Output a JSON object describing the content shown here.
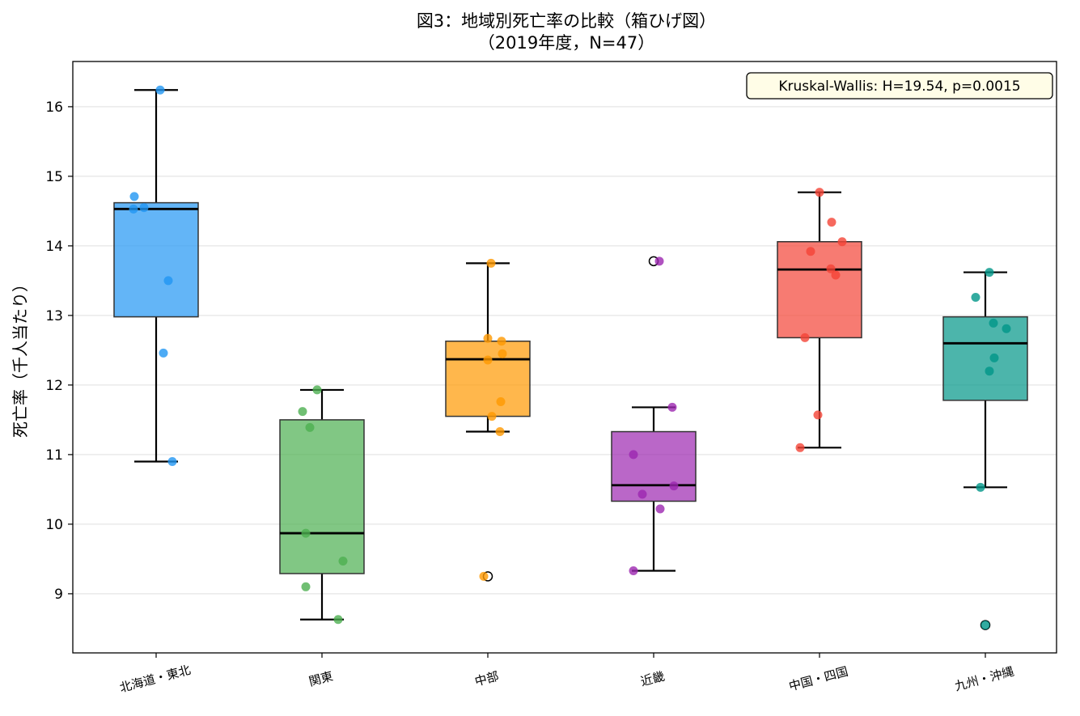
{
  "chart_data": {
    "type": "boxplot",
    "title": "図3：地域別死亡率の比較（箱ひげ図）",
    "subtitle": "（2019年度，N=47）",
    "ylabel": "死亡率（千人当たり）",
    "xlabel": "",
    "ylim": [
      8.15,
      16.65
    ],
    "yticks": [
      9,
      10,
      11,
      12,
      13,
      14,
      15,
      16
    ],
    "grid": "horizontal",
    "annotation": "Kruskal-Wallis: H=19.54, p=0.0015",
    "annotation_position": "top-right",
    "categories": [
      "北海道・東北",
      "関東",
      "中部",
      "近畿",
      "中国・四国",
      "九州・沖縄"
    ],
    "boxes": [
      {
        "category": "北海道・東北",
        "color": "#2196F3",
        "whisker_low": 10.9,
        "q1": 12.98,
        "median": 14.53,
        "q3": 14.62,
        "whisker_high": 16.24,
        "outliers": [],
        "points": [
          {
            "x": 0.2,
            "y": 10.9
          },
          {
            "x": 0.09,
            "y": 12.46
          },
          {
            "x": 0.15,
            "y": 13.5
          },
          {
            "x": -0.28,
            "y": 14.53
          },
          {
            "x": -0.15,
            "y": 14.55
          },
          {
            "x": -0.27,
            "y": 14.71
          },
          {
            "x": 0.05,
            "y": 16.24
          }
        ]
      },
      {
        "category": "関東",
        "color": "#4CAF50",
        "whisker_low": 8.63,
        "q1": 9.29,
        "median": 9.87,
        "q3": 11.5,
        "whisker_high": 11.93,
        "outliers": [],
        "points": [
          {
            "x": 0.2,
            "y": 8.63
          },
          {
            "x": -0.2,
            "y": 9.1
          },
          {
            "x": 0.26,
            "y": 9.47
          },
          {
            "x": -0.2,
            "y": 9.87
          },
          {
            "x": -0.15,
            "y": 11.39
          },
          {
            "x": -0.24,
            "y": 11.62
          },
          {
            "x": -0.06,
            "y": 11.93
          }
        ]
      },
      {
        "category": "中部",
        "color": "#FF9800",
        "whisker_low": 11.33,
        "q1": 11.55,
        "median": 12.37,
        "q3": 12.63,
        "whisker_high": 13.75,
        "outliers": [
          9.25
        ],
        "points": [
          {
            "x": -0.05,
            "y": 9.25
          },
          {
            "x": 0.15,
            "y": 11.33
          },
          {
            "x": 0.05,
            "y": 11.55
          },
          {
            "x": 0.16,
            "y": 11.76
          },
          {
            "x": 0.0,
            "y": 12.36
          },
          {
            "x": 0.18,
            "y": 12.45
          },
          {
            "x": 0.0,
            "y": 12.67
          },
          {
            "x": 0.17,
            "y": 12.63
          },
          {
            "x": 0.04,
            "y": 13.75
          }
        ]
      },
      {
        "category": "近畿",
        "color": "#9C27B0",
        "whisker_low": 9.33,
        "q1": 10.33,
        "median": 10.56,
        "q3": 11.33,
        "whisker_high": 11.68,
        "outliers": [
          13.78
        ],
        "points": [
          {
            "x": -0.25,
            "y": 9.33
          },
          {
            "x": 0.08,
            "y": 10.22
          },
          {
            "x": -0.14,
            "y": 10.43
          },
          {
            "x": 0.25,
            "y": 10.55
          },
          {
            "x": -0.25,
            "y": 11.0
          },
          {
            "x": 0.23,
            "y": 11.68
          },
          {
            "x": 0.07,
            "y": 13.78
          }
        ]
      },
      {
        "category": "中国・四国",
        "color": "#F44336",
        "whisker_low": 11.1,
        "q1": 12.68,
        "median": 13.66,
        "q3": 14.06,
        "whisker_high": 14.77,
        "outliers": [],
        "points": [
          {
            "x": -0.24,
            "y": 11.1
          },
          {
            "x": -0.02,
            "y": 11.57
          },
          {
            "x": -0.18,
            "y": 12.68
          },
          {
            "x": 0.2,
            "y": 13.58
          },
          {
            "x": 0.14,
            "y": 13.67
          },
          {
            "x": -0.11,
            "y": 13.92
          },
          {
            "x": 0.28,
            "y": 14.06
          },
          {
            "x": 0.15,
            "y": 14.34
          },
          {
            "x": 0.0,
            "y": 14.77
          }
        ]
      },
      {
        "category": "九州・沖縄",
        "color": "#009688",
        "whisker_low": 10.53,
        "q1": 11.78,
        "median": 12.6,
        "q3": 12.98,
        "whisker_high": 13.62,
        "outliers": [
          8.55
        ],
        "points": [
          {
            "x": 0.0,
            "y": 8.55
          },
          {
            "x": -0.06,
            "y": 10.53
          },
          {
            "x": 0.05,
            "y": 12.2
          },
          {
            "x": 0.11,
            "y": 12.39
          },
          {
            "x": 0.26,
            "y": 12.81
          },
          {
            "x": 0.1,
            "y": 12.89
          },
          {
            "x": -0.12,
            "y": 13.26
          },
          {
            "x": 0.05,
            "y": 13.62
          }
        ]
      }
    ]
  }
}
